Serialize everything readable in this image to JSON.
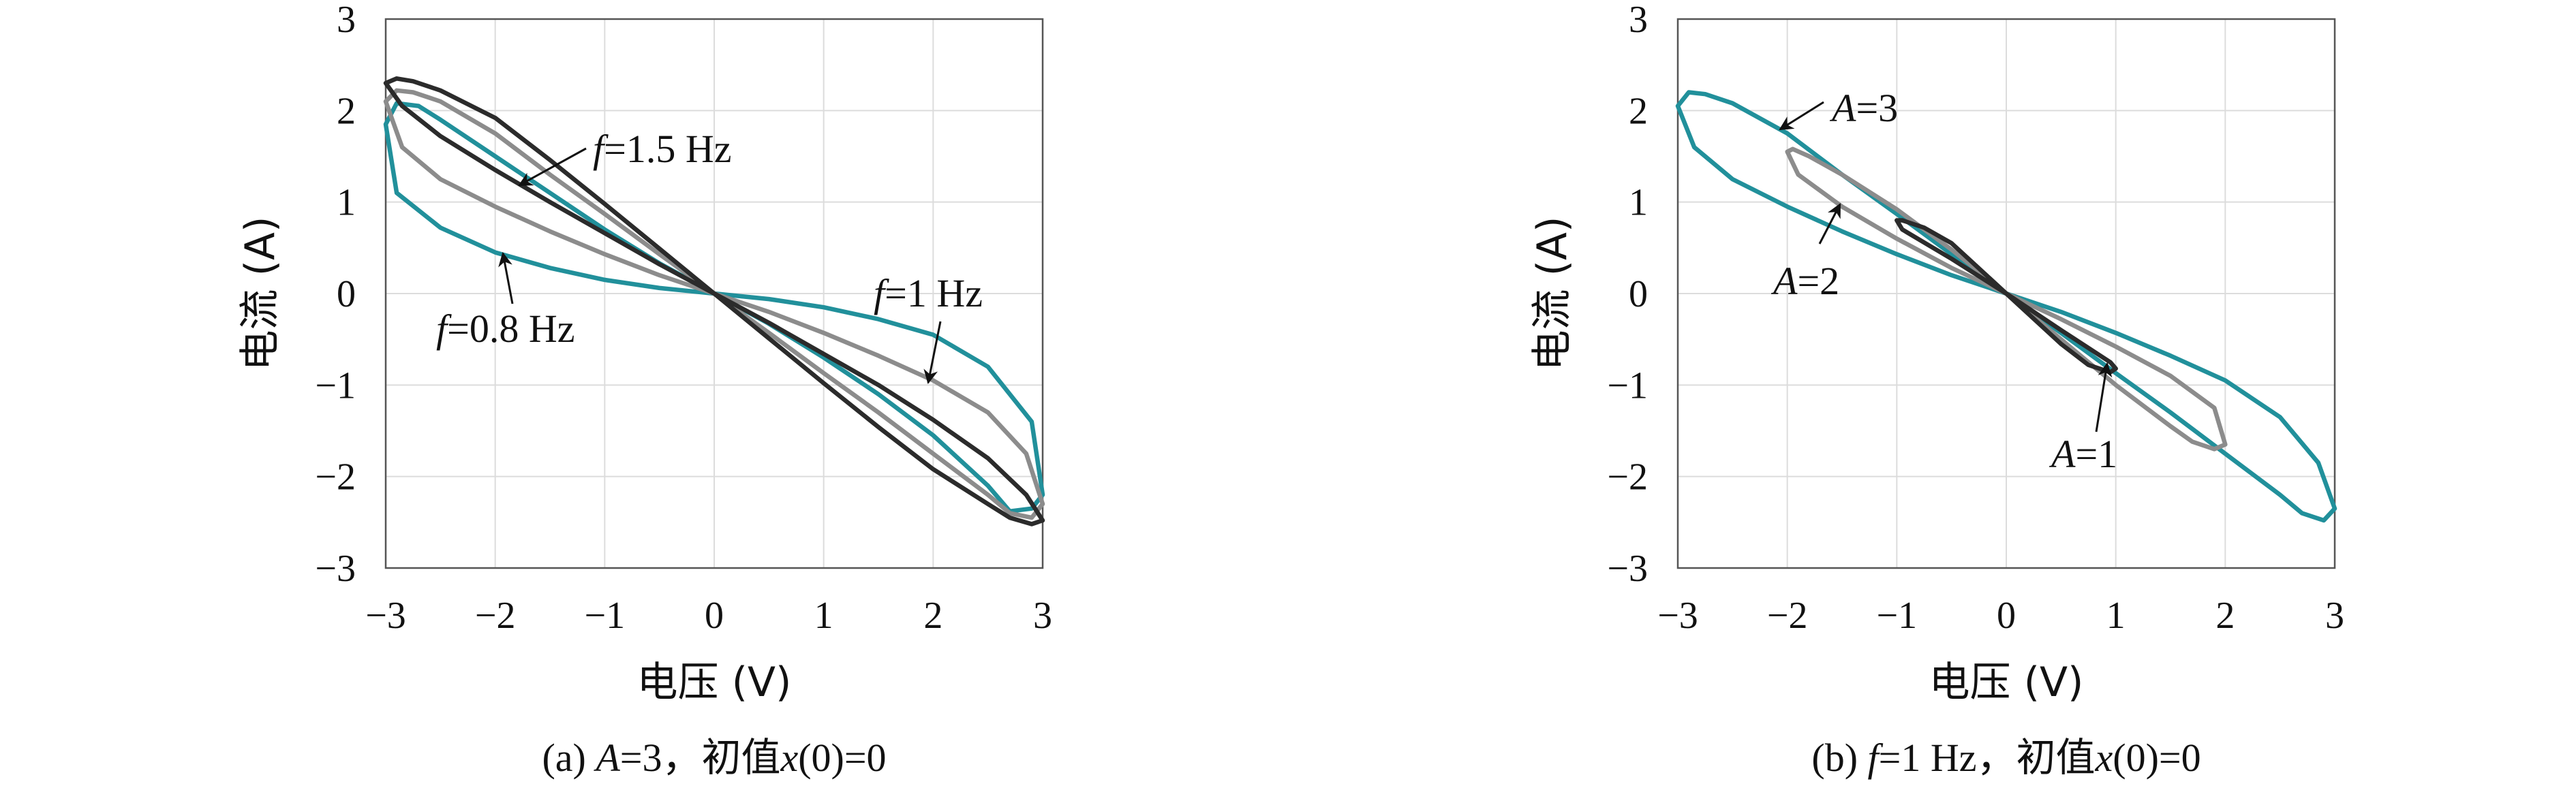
{
  "colors": {
    "f_0_8": "#21909b",
    "f_1": "#8c8c8c",
    "f_1_5": "#2b2b2b",
    "A_3": "#21909b",
    "A_2": "#8c8c8c",
    "A_1": "#2b2b2b"
  },
  "chart_data": [
    {
      "type": "line",
      "xlabel": "电压 (V)",
      "ylabel": "电流 (A)",
      "xlim": [
        -3,
        3
      ],
      "ylim": [
        -3,
        3
      ],
      "xticks": [
        "−3",
        "−2",
        "−1",
        "0",
        "1",
        "2",
        "3"
      ],
      "yticks": [
        "3",
        "2",
        "1",
        "0",
        "−1",
        "−2",
        "−3"
      ],
      "grid": true,
      "caption": {
        "prefix": "(a) ",
        "var": "A",
        "rest": "=3，初值",
        "var2": "x",
        "rest2": "(0)=0"
      },
      "series": [
        {
          "name": "f=0.8 Hz",
          "amplitude": 3,
          "frequency_hz": 0.8,
          "color_key": "f_0_8",
          "points": [
            [
              -3,
              1.85
            ],
            [
              -2.9,
              1.1
            ],
            [
              -2.5,
              0.72
            ],
            [
              -2,
              0.45
            ],
            [
              -1.5,
              0.28
            ],
            [
              -1,
              0.15
            ],
            [
              -0.5,
              0.06
            ],
            [
              0,
              0
            ],
            [
              0.5,
              -0.06
            ],
            [
              1,
              -0.15
            ],
            [
              1.5,
              -0.28
            ],
            [
              2,
              -0.45
            ],
            [
              2.5,
              -0.8
            ],
            [
              2.9,
              -1.4
            ],
            [
              3,
              -2.2
            ],
            [
              2.9,
              -2.35
            ],
            [
              2.7,
              -2.38
            ],
            [
              2.5,
              -2.1
            ],
            [
              2,
              -1.55
            ],
            [
              1.5,
              -1.1
            ],
            [
              1,
              -0.7
            ],
            [
              0.5,
              -0.33
            ],
            [
              0,
              0
            ],
            [
              -0.5,
              0.33
            ],
            [
              -1,
              0.7
            ],
            [
              -1.5,
              1.1
            ],
            [
              -2,
              1.5
            ],
            [
              -2.5,
              1.9
            ],
            [
              -2.7,
              2.05
            ],
            [
              -2.9,
              2.08
            ],
            [
              -3,
              1.85
            ]
          ]
        },
        {
          "name": "f=1 Hz",
          "amplitude": 3,
          "frequency_hz": 1,
          "color_key": "f_1",
          "points": [
            [
              -3,
              2.1
            ],
            [
              -2.85,
              1.6
            ],
            [
              -2.5,
              1.25
            ],
            [
              -2,
              0.95
            ],
            [
              -1.5,
              0.68
            ],
            [
              -1,
              0.43
            ],
            [
              -0.5,
              0.2
            ],
            [
              0,
              0
            ],
            [
              0.5,
              -0.2
            ],
            [
              1,
              -0.43
            ],
            [
              1.5,
              -0.68
            ],
            [
              2,
              -0.95
            ],
            [
              2.5,
              -1.3
            ],
            [
              2.85,
              -1.75
            ],
            [
              3,
              -2.3
            ],
            [
              2.9,
              -2.45
            ],
            [
              2.7,
              -2.4
            ],
            [
              2.5,
              -2.2
            ],
            [
              2,
              -1.75
            ],
            [
              1.5,
              -1.3
            ],
            [
              1,
              -0.87
            ],
            [
              0.5,
              -0.43
            ],
            [
              0,
              0
            ],
            [
              -0.5,
              0.43
            ],
            [
              -1,
              0.87
            ],
            [
              -1.5,
              1.3
            ],
            [
              -2,
              1.75
            ],
            [
              -2.5,
              2.1
            ],
            [
              -2.75,
              2.2
            ],
            [
              -2.9,
              2.22
            ],
            [
              -3,
              2.1
            ]
          ]
        },
        {
          "name": "f=1.5 Hz",
          "amplitude": 3,
          "frequency_hz": 1.5,
          "color_key": "f_1_5",
          "points": [
            [
              -3,
              2.3
            ],
            [
              -2.85,
              2.05
            ],
            [
              -2.5,
              1.72
            ],
            [
              -2,
              1.35
            ],
            [
              -1.5,
              1.0
            ],
            [
              -1,
              0.66
            ],
            [
              -0.5,
              0.32
            ],
            [
              0,
              0
            ],
            [
              0.5,
              -0.32
            ],
            [
              1,
              -0.66
            ],
            [
              1.5,
              -1.0
            ],
            [
              2,
              -1.38
            ],
            [
              2.5,
              -1.8
            ],
            [
              2.85,
              -2.2
            ],
            [
              3,
              -2.48
            ],
            [
              2.9,
              -2.52
            ],
            [
              2.7,
              -2.45
            ],
            [
              2.5,
              -2.3
            ],
            [
              2,
              -1.92
            ],
            [
              1.5,
              -1.46
            ],
            [
              1,
              -0.98
            ],
            [
              0.5,
              -0.49
            ],
            [
              0,
              0
            ],
            [
              -0.5,
              0.49
            ],
            [
              -1,
              0.98
            ],
            [
              -1.5,
              1.46
            ],
            [
              -2,
              1.92
            ],
            [
              -2.5,
              2.22
            ],
            [
              -2.75,
              2.32
            ],
            [
              -2.9,
              2.35
            ],
            [
              -3,
              2.3
            ]
          ]
        }
      ],
      "annotations": [
        {
          "var": "f",
          "rest": "=1.5 Hz"
        },
        {
          "var": "f",
          "rest": "=0.8 Hz"
        },
        {
          "var": "f",
          "rest": "=1 Hz"
        }
      ]
    },
    {
      "type": "line",
      "xlabel": "电压 (V)",
      "ylabel": "电流 (A)",
      "xlim": [
        -3,
        3
      ],
      "ylim": [
        -3,
        3
      ],
      "xticks": [
        "−3",
        "−2",
        "−1",
        "0",
        "1",
        "2",
        "3"
      ],
      "yticks": [
        "3",
        "2",
        "1",
        "0",
        "−1",
        "−2",
        "−3"
      ],
      "grid": true,
      "caption": {
        "prefix": "(b) ",
        "var": "f",
        "rest": "=1 Hz，初值",
        "var2": "x",
        "rest2": "(0)=0"
      },
      "series": [
        {
          "name": "A=3",
          "amplitude": 3,
          "frequency_hz": 1,
          "color_key": "A_3",
          "points": [
            [
              -3,
              2.05
            ],
            [
              -2.85,
              1.6
            ],
            [
              -2.5,
              1.25
            ],
            [
              -2,
              0.95
            ],
            [
              -1.5,
              0.68
            ],
            [
              -1,
              0.43
            ],
            [
              -0.5,
              0.2
            ],
            [
              0,
              0
            ],
            [
              0.5,
              -0.2
            ],
            [
              1,
              -0.43
            ],
            [
              1.5,
              -0.68
            ],
            [
              2,
              -0.95
            ],
            [
              2.5,
              -1.35
            ],
            [
              2.85,
              -1.85
            ],
            [
              3,
              -2.35
            ],
            [
              2.9,
              -2.48
            ],
            [
              2.7,
              -2.4
            ],
            [
              2.5,
              -2.2
            ],
            [
              2,
              -1.75
            ],
            [
              1.5,
              -1.3
            ],
            [
              1,
              -0.87
            ],
            [
              0.5,
              -0.43
            ],
            [
              0,
              0
            ],
            [
              -0.5,
              0.43
            ],
            [
              -1,
              0.87
            ],
            [
              -1.5,
              1.3
            ],
            [
              -2,
              1.75
            ],
            [
              -2.5,
              2.08
            ],
            [
              -2.75,
              2.18
            ],
            [
              -2.9,
              2.2
            ],
            [
              -3,
              2.05
            ]
          ]
        },
        {
          "name": "A=2",
          "amplitude": 2,
          "frequency_hz": 1,
          "color_key": "A_2",
          "points": [
            [
              -2,
              1.55
            ],
            [
              -1.9,
              1.3
            ],
            [
              -1.5,
              0.95
            ],
            [
              -1,
              0.6
            ],
            [
              -0.5,
              0.28
            ],
            [
              0,
              0
            ],
            [
              0.5,
              -0.28
            ],
            [
              1,
              -0.58
            ],
            [
              1.5,
              -0.9
            ],
            [
              1.9,
              -1.25
            ],
            [
              2,
              -1.65
            ],
            [
              1.9,
              -1.7
            ],
            [
              1.7,
              -1.62
            ],
            [
              1.5,
              -1.45
            ],
            [
              1,
              -1.0
            ],
            [
              0.5,
              -0.5
            ],
            [
              0,
              0
            ],
            [
              -0.5,
              0.48
            ],
            [
              -1,
              0.92
            ],
            [
              -1.5,
              1.3
            ],
            [
              -1.8,
              1.5
            ],
            [
              -1.95,
              1.58
            ],
            [
              -2,
              1.55
            ]
          ]
        },
        {
          "name": "A=1",
          "amplitude": 1,
          "frequency_hz": 1,
          "color_key": "A_1",
          "points": [
            [
              -1,
              0.8
            ],
            [
              -0.95,
              0.7
            ],
            [
              -0.5,
              0.38
            ],
            [
              0,
              0
            ],
            [
              0.5,
              -0.4
            ],
            [
              0.95,
              -0.75
            ],
            [
              1,
              -0.82
            ],
            [
              0.95,
              -0.86
            ],
            [
              0.75,
              -0.78
            ],
            [
              0.5,
              -0.55
            ],
            [
              0,
              0
            ],
            [
              -0.5,
              0.55
            ],
            [
              -0.75,
              0.72
            ],
            [
              -0.95,
              0.8
            ],
            [
              -1,
              0.8
            ]
          ]
        }
      ],
      "annotations": [
        {
          "var": "A",
          "rest": "=3"
        },
        {
          "var": "A",
          "rest": "=2"
        },
        {
          "var": "A",
          "rest": "=1"
        }
      ]
    }
  ]
}
